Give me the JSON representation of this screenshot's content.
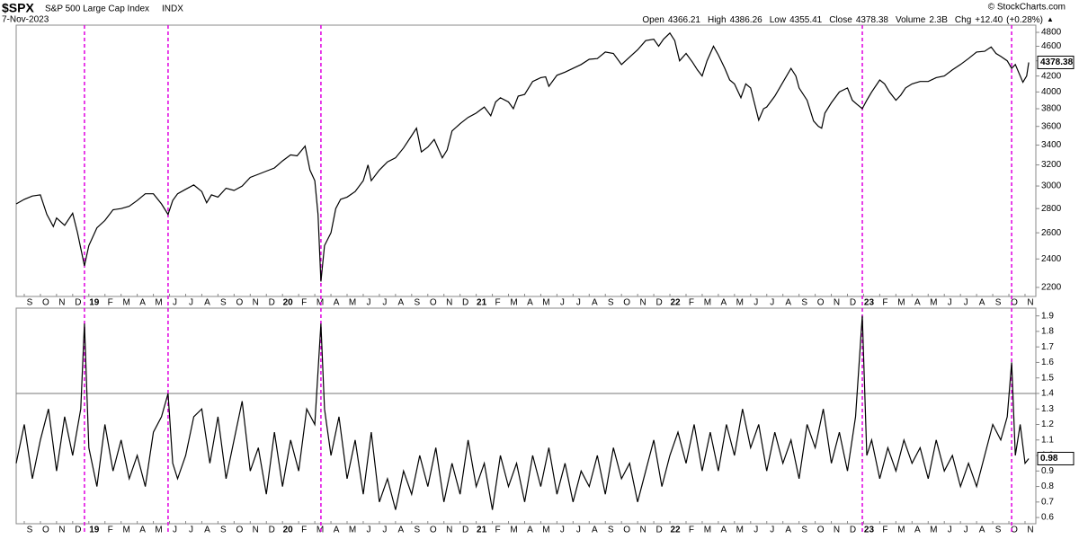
{
  "chart_data": [
    {
      "type": "line",
      "title": "$SPX",
      "subtitle": "S&P 500 Large Cap Index",
      "exchange": "INDX",
      "date": "7-Nov-2023",
      "source": "© StockCharts.com",
      "quote": [
        {
          "name": "Open",
          "value": 4366.21
        },
        {
          "name": "High",
          "value": 4386.26
        },
        {
          "name": "Low",
          "value": 4355.41
        },
        {
          "name": "Close",
          "value": 4378.38
        },
        {
          "name": "Volume",
          "value": 2300000000,
          "label": "2.3B"
        },
        {
          "name": "Chg",
          "value": 12.4,
          "label": "+12.40"
        },
        {
          "value": 0.28,
          "label": "(+0.28%)"
        }
      ],
      "log_scale": true,
      "color": "#000000",
      "vline_color": "#e000e0",
      "show_last_value": true,
      "xlim": [
        -0.5,
        62.67
      ],
      "ylim": [
        2140,
        4907
      ],
      "yticks": [
        2200,
        2400,
        2600,
        2800,
        3000,
        3200,
        3400,
        3600,
        3800,
        4000,
        4200,
        4400,
        4600,
        4800
      ],
      "xticks": [
        {
          "value": 0,
          "label": "S"
        },
        {
          "value": 1,
          "label": "O"
        },
        {
          "value": 2,
          "label": "N"
        },
        {
          "value": 3,
          "label": "D"
        },
        {
          "value": 4,
          "label": "19"
        },
        {
          "value": 5,
          "label": "F"
        },
        {
          "value": 6,
          "label": "M"
        },
        {
          "value": 7,
          "label": "A"
        },
        {
          "value": 8,
          "label": "M"
        },
        {
          "value": 9,
          "label": "J"
        },
        {
          "value": 10,
          "label": "J"
        },
        {
          "value": 11,
          "label": "A"
        },
        {
          "value": 12,
          "label": "S"
        },
        {
          "value": 13,
          "label": "O"
        },
        {
          "value": 14,
          "label": "N"
        },
        {
          "value": 15,
          "label": "D"
        },
        {
          "value": 16,
          "label": "20"
        },
        {
          "value": 17,
          "label": "F"
        },
        {
          "value": 18,
          "label": "M"
        },
        {
          "value": 19,
          "label": "A"
        },
        {
          "value": 20,
          "label": "M"
        },
        {
          "value": 21,
          "label": "J"
        },
        {
          "value": 22,
          "label": "J"
        },
        {
          "value": 23,
          "label": "A"
        },
        {
          "value": 24,
          "label": "S"
        },
        {
          "value": 25,
          "label": "O"
        },
        {
          "value": 26,
          "label": "N"
        },
        {
          "value": 27,
          "label": "D"
        },
        {
          "value": 28,
          "label": "21"
        },
        {
          "value": 29,
          "label": "F"
        },
        {
          "value": 30,
          "label": "M"
        },
        {
          "value": 31,
          "label": "A"
        },
        {
          "value": 32,
          "label": "M"
        },
        {
          "value": 33,
          "label": "J"
        },
        {
          "value": 34,
          "label": "J"
        },
        {
          "value": 35,
          "label": "A"
        },
        {
          "value": 36,
          "label": "S"
        },
        {
          "value": 37,
          "label": "O"
        },
        {
          "value": 38,
          "label": "N"
        },
        {
          "value": 39,
          "label": "D"
        },
        {
          "value": 40,
          "label": "22"
        },
        {
          "value": 41,
          "label": "F"
        },
        {
          "value": 42,
          "label": "M"
        },
        {
          "value": 43,
          "label": "A"
        },
        {
          "value": 44,
          "label": "M"
        },
        {
          "value": 45,
          "label": "J"
        },
        {
          "value": 46,
          "label": "J"
        },
        {
          "value": 47,
          "label": "A"
        },
        {
          "value": 48,
          "label": "S"
        },
        {
          "value": 49,
          "label": "O"
        },
        {
          "value": 50,
          "label": "N"
        },
        {
          "value": 51,
          "label": "D"
        },
        {
          "value": 52,
          "label": "23"
        },
        {
          "value": 53,
          "label": "F"
        },
        {
          "value": 54,
          "label": "M"
        },
        {
          "value": 55,
          "label": "A"
        },
        {
          "value": 56,
          "label": "M"
        },
        {
          "value": 57,
          "label": "J"
        },
        {
          "value": 58,
          "label": "J"
        },
        {
          "value": 59,
          "label": "A"
        },
        {
          "value": 60,
          "label": "S"
        },
        {
          "value": 61,
          "label": "O"
        },
        {
          "value": 62,
          "label": "N"
        }
      ],
      "vlines": [
        3.73,
        8.91,
        18.38,
        51.92,
        61.17
      ],
      "x": [
        -0.5,
        0,
        0.5,
        1,
        1.4,
        1.8,
        2,
        2.5,
        3,
        3.3,
        3.73,
        4,
        4.5,
        5,
        5.5,
        6,
        6.5,
        7,
        7.5,
        8,
        8.5,
        8.91,
        9.2,
        9.5,
        10,
        10.5,
        11,
        11.3,
        11.6,
        12,
        12.5,
        13,
        13.5,
        14,
        14.5,
        15,
        15.5,
        16,
        16.5,
        16.9,
        17.4,
        17.7,
        18,
        18.2,
        18.38,
        18.6,
        19,
        19.3,
        19.6,
        20,
        20.5,
        21,
        21.3,
        21.5,
        22,
        22.5,
        23,
        23.5,
        24,
        24.3,
        24.6,
        25,
        25.4,
        25.9,
        26.2,
        26.5,
        27,
        27.5,
        28,
        28.5,
        28.9,
        29.2,
        29.5,
        30,
        30.3,
        30.6,
        31,
        31.5,
        32,
        32.3,
        32.5,
        33,
        33.5,
        34,
        34.5,
        35,
        35.5,
        36,
        36.5,
        37,
        37.5,
        38,
        38.5,
        39,
        39.3,
        39.6,
        40,
        40.3,
        40.6,
        41,
        41.4,
        41.7,
        42,
        42.3,
        42.7,
        43,
        43.4,
        43.7,
        44,
        44.4,
        44.7,
        45,
        45.5,
        45.8,
        46,
        46.5,
        47,
        47.5,
        47.8,
        48,
        48.5,
        48.9,
        49.2,
        49.4,
        49.6,
        50,
        50.5,
        51,
        51.3,
        51.6,
        51.92,
        52.2,
        52.5,
        53,
        53.3,
        53.6,
        54,
        54.3,
        54.6,
        55,
        55.5,
        56,
        56.5,
        57,
        57.5,
        58,
        58.5,
        59,
        59.5,
        59.9,
        60.2,
        60.5,
        60.9,
        61.17,
        61.4,
        61.6,
        61.87,
        62.1,
        62.23
      ],
      "values": [
        2840,
        2880,
        2910,
        2920,
        2750,
        2650,
        2720,
        2660,
        2760,
        2600,
        2350,
        2500,
        2640,
        2700,
        2790,
        2800,
        2820,
        2870,
        2930,
        2930,
        2840,
        2750,
        2870,
        2930,
        2970,
        3010,
        2950,
        2850,
        2920,
        2900,
        2980,
        2960,
        3000,
        3080,
        3110,
        3140,
        3170,
        3240,
        3300,
        3290,
        3390,
        3150,
        3050,
        2750,
        2240,
        2500,
        2600,
        2800,
        2880,
        2900,
        2950,
        3050,
        3200,
        3050,
        3150,
        3230,
        3270,
        3370,
        3500,
        3580,
        3330,
        3380,
        3460,
        3270,
        3350,
        3550,
        3630,
        3700,
        3750,
        3820,
        3720,
        3880,
        3930,
        3880,
        3800,
        3950,
        3970,
        4130,
        4180,
        4190,
        4070,
        4210,
        4250,
        4300,
        4350,
        4420,
        4430,
        4520,
        4500,
        4350,
        4450,
        4550,
        4680,
        4700,
        4600,
        4700,
        4790,
        4680,
        4400,
        4500,
        4380,
        4280,
        4200,
        4400,
        4600,
        4480,
        4300,
        4150,
        4100,
        3930,
        4100,
        4050,
        3670,
        3800,
        3820,
        3950,
        4120,
        4300,
        4200,
        4050,
        3900,
        3660,
        3600,
        3580,
        3750,
        3870,
        4000,
        4050,
        3900,
        3850,
        3800,
        3900,
        4000,
        4150,
        4100,
        4000,
        3900,
        3960,
        4050,
        4100,
        4130,
        4130,
        4180,
        4200,
        4280,
        4350,
        4430,
        4520,
        4530,
        4590,
        4500,
        4460,
        4400,
        4300,
        4350,
        4250,
        4120,
        4200,
        4378.38
      ]
    },
    {
      "type": "line",
      "color": "#000000",
      "vline_color": "#e000e0",
      "show_last_value": true,
      "hlines": [
        1.4
      ],
      "xlim": [
        -0.5,
        62.67
      ],
      "ylim": [
        0.56,
        1.95
      ],
      "yticks": [
        0.6,
        0.7,
        0.8,
        0.9,
        {
          "value": 1,
          "label": "1.0"
        },
        1.1,
        1.2,
        1.3,
        1.4,
        1.5,
        1.6,
        1.7,
        1.8,
        1.9
      ],
      "xticks": [
        {
          "value": 0,
          "label": "S"
        },
        {
          "value": 1,
          "label": "O"
        },
        {
          "value": 2,
          "label": "N"
        },
        {
          "value": 3,
          "label": "D"
        },
        {
          "value": 4,
          "label": "19"
        },
        {
          "value": 5,
          "label": "F"
        },
        {
          "value": 6,
          "label": "M"
        },
        {
          "value": 7,
          "label": "A"
        },
        {
          "value": 8,
          "label": "M"
        },
        {
          "value": 9,
          "label": "J"
        },
        {
          "value": 10,
          "label": "J"
        },
        {
          "value": 11,
          "label": "A"
        },
        {
          "value": 12,
          "label": "S"
        },
        {
          "value": 13,
          "label": "O"
        },
        {
          "value": 14,
          "label": "N"
        },
        {
          "value": 15,
          "label": "D"
        },
        {
          "value": 16,
          "label": "20"
        },
        {
          "value": 17,
          "label": "F"
        },
        {
          "value": 18,
          "label": "M"
        },
        {
          "value": 19,
          "label": "A"
        },
        {
          "value": 20,
          "label": "M"
        },
        {
          "value": 21,
          "label": "J"
        },
        {
          "value": 22,
          "label": "J"
        },
        {
          "value": 23,
          "label": "A"
        },
        {
          "value": 24,
          "label": "S"
        },
        {
          "value": 25,
          "label": "O"
        },
        {
          "value": 26,
          "label": "N"
        },
        {
          "value": 27,
          "label": "D"
        },
        {
          "value": 28,
          "label": "21"
        },
        {
          "value": 29,
          "label": "F"
        },
        {
          "value": 30,
          "label": "M"
        },
        {
          "value": 31,
          "label": "A"
        },
        {
          "value": 32,
          "label": "M"
        },
        {
          "value": 33,
          "label": "J"
        },
        {
          "value": 34,
          "label": "J"
        },
        {
          "value": 35,
          "label": "A"
        },
        {
          "value": 36,
          "label": "S"
        },
        {
          "value": 37,
          "label": "O"
        },
        {
          "value": 38,
          "label": "N"
        },
        {
          "value": 39,
          "label": "D"
        },
        {
          "value": 40,
          "label": "22"
        },
        {
          "value": 41,
          "label": "F"
        },
        {
          "value": 42,
          "label": "M"
        },
        {
          "value": 43,
          "label": "A"
        },
        {
          "value": 44,
          "label": "M"
        },
        {
          "value": 45,
          "label": "J"
        },
        {
          "value": 46,
          "label": "J"
        },
        {
          "value": 47,
          "label": "A"
        },
        {
          "value": 48,
          "label": "S"
        },
        {
          "value": 49,
          "label": "O"
        },
        {
          "value": 50,
          "label": "N"
        },
        {
          "value": 51,
          "label": "D"
        },
        {
          "value": 52,
          "label": "23"
        },
        {
          "value": 53,
          "label": "F"
        },
        {
          "value": 54,
          "label": "M"
        },
        {
          "value": 55,
          "label": "A"
        },
        {
          "value": 56,
          "label": "M"
        },
        {
          "value": 57,
          "label": "J"
        },
        {
          "value": 58,
          "label": "J"
        },
        {
          "value": 59,
          "label": "A"
        },
        {
          "value": 60,
          "label": "S"
        },
        {
          "value": 61,
          "label": "O"
        },
        {
          "value": 62,
          "label": "N"
        }
      ],
      "vlines": [
        3.73,
        8.91,
        18.38,
        51.92,
        61.17
      ],
      "x": [
        -0.5,
        0,
        0.5,
        1,
        1.5,
        2,
        2.5,
        3,
        3.5,
        3.73,
        4,
        4.5,
        5,
        5.5,
        6,
        6.5,
        7,
        7.5,
        8,
        8.5,
        8.91,
        9.2,
        9.5,
        10,
        10.5,
        11,
        11.5,
        12,
        12.5,
        13,
        13.5,
        14,
        14.5,
        15,
        15.5,
        16,
        16.5,
        17,
        17.5,
        18,
        18.38,
        18.6,
        19,
        19.5,
        20,
        20.5,
        21,
        21.5,
        22,
        22.5,
        23,
        23.5,
        24,
        24.5,
        25,
        25.5,
        26,
        26.5,
        27,
        27.5,
        28,
        28.5,
        29,
        29.5,
        30,
        30.5,
        31,
        31.5,
        32,
        32.5,
        33,
        33.5,
        34,
        34.5,
        35,
        35.5,
        36,
        36.5,
        37,
        37.5,
        38,
        38.5,
        39,
        39.5,
        40,
        40.5,
        41,
        41.5,
        42,
        42.5,
        43,
        43.5,
        44,
        44.5,
        45,
        45.5,
        46,
        46.5,
        47,
        47.5,
        48,
        48.5,
        49,
        49.5,
        50,
        50.5,
        51,
        51.5,
        51.92,
        52.2,
        52.5,
        53,
        53.5,
        54,
        54.5,
        55,
        55.5,
        56,
        56.5,
        57,
        57.5,
        58,
        58.5,
        59,
        59.5,
        60,
        60.5,
        60.9,
        61.17,
        61.4,
        61.7,
        62,
        62.23
      ],
      "values": [
        0.95,
        1.2,
        0.85,
        1.1,
        1.3,
        0.9,
        1.25,
        1.0,
        1.3,
        1.85,
        1.05,
        0.8,
        1.2,
        0.9,
        1.1,
        0.85,
        1.0,
        0.8,
        1.15,
        1.25,
        1.4,
        0.95,
        0.85,
        1.0,
        1.25,
        1.3,
        0.95,
        1.25,
        0.85,
        1.1,
        1.35,
        0.9,
        1.05,
        0.75,
        1.15,
        0.8,
        1.1,
        0.9,
        1.3,
        1.2,
        1.85,
        1.3,
        1.0,
        1.25,
        0.85,
        1.1,
        0.75,
        1.15,
        0.7,
        0.85,
        0.65,
        0.9,
        0.75,
        1.0,
        0.8,
        1.05,
        0.7,
        0.95,
        0.75,
        1.1,
        0.8,
        0.95,
        0.65,
        1.0,
        0.8,
        0.95,
        0.7,
        1.0,
        0.8,
        1.05,
        0.75,
        0.95,
        0.7,
        0.9,
        0.8,
        1.0,
        0.75,
        1.05,
        0.85,
        0.95,
        0.7,
        0.9,
        1.1,
        0.8,
        1.0,
        1.15,
        0.95,
        1.2,
        0.9,
        1.15,
        0.9,
        1.2,
        1.0,
        1.3,
        1.05,
        1.2,
        0.9,
        1.15,
        0.95,
        1.1,
        0.85,
        1.2,
        1.05,
        1.3,
        0.95,
        1.15,
        0.9,
        1.25,
        1.9,
        1.0,
        1.1,
        0.85,
        1.05,
        0.9,
        1.1,
        0.95,
        1.05,
        0.85,
        1.1,
        0.9,
        1.0,
        0.8,
        0.95,
        0.8,
        1.0,
        1.2,
        1.1,
        1.25,
        1.6,
        1.0,
        1.2,
        0.95,
        0.98
      ]
    }
  ]
}
